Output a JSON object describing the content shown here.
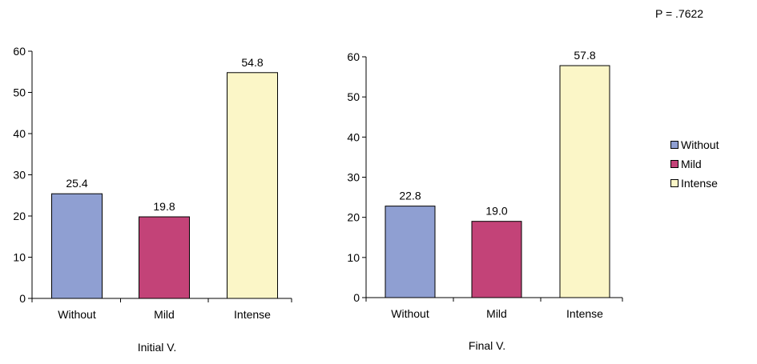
{
  "p_value": "P = .7622",
  "legend": [
    {
      "label": "Without",
      "color": "#8F9FD2"
    },
    {
      "label": "Mild",
      "color": "#C34378"
    },
    {
      "label": "Intense",
      "color": "#FBF6C7"
    }
  ],
  "chart_data": [
    {
      "type": "bar",
      "title": "",
      "xlabel": "Initial V.",
      "ylabel": "",
      "categories": [
        "Without",
        "Mild",
        "Intense"
      ],
      "values": [
        25.4,
        19.8,
        54.8
      ],
      "value_labels": [
        "25.4",
        "19.8",
        "54.8"
      ],
      "colors": [
        "#8F9FD2",
        "#C34378",
        "#FBF6C7"
      ],
      "ylim": [
        0,
        60
      ],
      "yticks": [
        "0",
        "10",
        "20",
        "30",
        "40",
        "50",
        "60"
      ],
      "grid": false
    },
    {
      "type": "bar",
      "title": "",
      "xlabel": "Final V.",
      "ylabel": "",
      "categories": [
        "Without",
        "Mild",
        "Intense"
      ],
      "values": [
        22.8,
        19.0,
        57.8
      ],
      "value_labels": [
        "22.8",
        "19.0",
        "57.8"
      ],
      "colors": [
        "#8F9FD2",
        "#C34378",
        "#FBF6C7"
      ],
      "ylim": [
        0,
        60
      ],
      "yticks": [
        "0",
        "10",
        "20",
        "30",
        "40",
        "50",
        "60"
      ],
      "grid": false
    }
  ]
}
